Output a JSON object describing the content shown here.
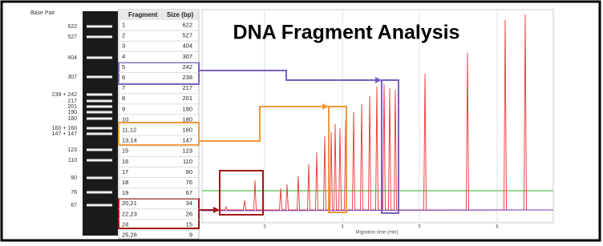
{
  "gel": {
    "title": "Base Pair",
    "labels": [
      "622",
      "527",
      "404",
      "307",
      "238 + 242",
      "217",
      "201",
      "190",
      "180",
      "160 + 160",
      "147 + 147",
      "123",
      "110",
      "90",
      "76",
      "67"
    ]
  },
  "table": {
    "header": [
      "Fragment",
      "Size (bp)"
    ],
    "rows": [
      [
        "1",
        "622"
      ],
      [
        "2",
        "527"
      ],
      [
        "3",
        "404"
      ],
      [
        "4",
        "307"
      ],
      [
        "5",
        "242"
      ],
      [
        "6",
        "238"
      ],
      [
        "7",
        "217"
      ],
      [
        "8",
        "201"
      ],
      [
        "9",
        "190"
      ],
      [
        "10",
        "180"
      ],
      [
        "11,12",
        "160"
      ],
      [
        "13,14",
        "147"
      ],
      [
        "15",
        "123"
      ],
      [
        "16",
        "110"
      ],
      [
        "17",
        "90"
      ],
      [
        "18",
        "76"
      ],
      [
        "19",
        "67"
      ],
      [
        "20,21",
        "34"
      ],
      [
        "22,23",
        "26"
      ],
      [
        "24",
        "15"
      ],
      [
        "25,26",
        "9"
      ]
    ]
  },
  "plot": {
    "title": "DNA Fragment Analysis",
    "x_ticks": [
      "3",
      "4",
      "5",
      "6"
    ],
    "x_label": "Migration time (min)"
  }
}
